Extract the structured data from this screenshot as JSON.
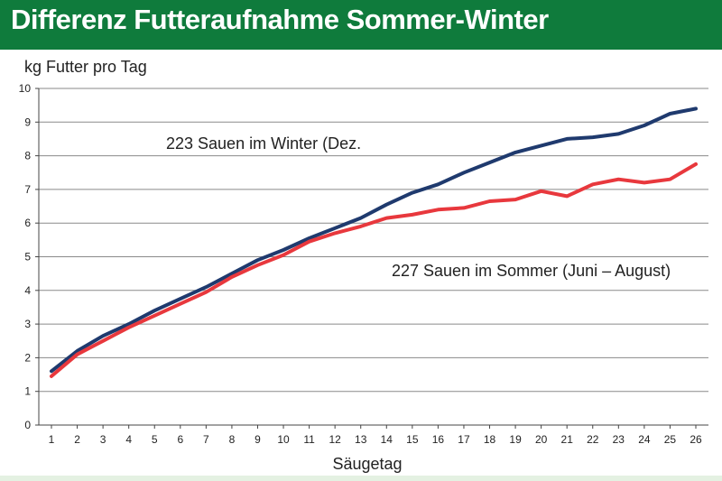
{
  "header": {
    "title": "Differenz Futteraufnahme Sommer-Winter"
  },
  "chart_data": {
    "type": "line",
    "title": "Differenz Futteraufnahme Sommer-Winter",
    "xlabel": "Säugetag",
    "ylabel": "kg Futter pro Tag",
    "ylim": [
      0,
      10
    ],
    "yticks": [
      0,
      1,
      2,
      3,
      4,
      5,
      6,
      7,
      8,
      9,
      10
    ],
    "x": [
      1,
      2,
      3,
      4,
      5,
      6,
      7,
      8,
      9,
      10,
      11,
      12,
      13,
      14,
      15,
      16,
      17,
      18,
      19,
      20,
      21,
      22,
      23,
      24,
      25,
      26
    ],
    "grid": true,
    "legend": "inline-labels",
    "series": [
      {
        "name": "223 Sauen im Winter (Dez.",
        "color": "#1f3a6e",
        "values": [
          1.6,
          2.2,
          2.65,
          3.0,
          3.4,
          3.75,
          4.1,
          4.5,
          4.9,
          5.2,
          5.55,
          5.85,
          6.15,
          6.55,
          6.9,
          7.15,
          7.5,
          7.8,
          8.1,
          8.3,
          8.5,
          8.55,
          8.65,
          8.9,
          9.25,
          9.4
        ]
      },
      {
        "name": "227 Sauen im Sommer (Juni – August)",
        "color": "#e8383d",
        "values": [
          1.45,
          2.1,
          2.5,
          2.9,
          3.25,
          3.6,
          3.95,
          4.4,
          4.75,
          5.05,
          5.45,
          5.7,
          5.9,
          6.15,
          6.25,
          6.4,
          6.45,
          6.65,
          6.7,
          6.95,
          6.8,
          7.15,
          7.3,
          7.2,
          7.3,
          7.75
        ]
      }
    ]
  }
}
